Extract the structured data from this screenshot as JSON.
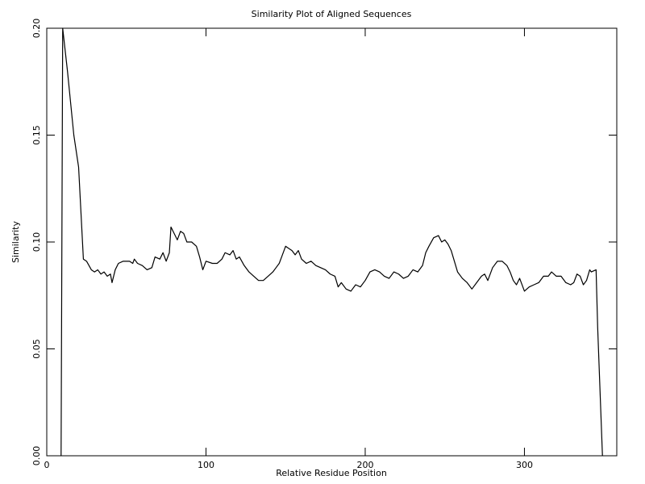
{
  "chart_data": {
    "type": "line",
    "title": "Similarity Plot of Aligned Sequences",
    "x_label": "Relative Residue Position",
    "y_label": "Similarity",
    "xlim": [
      0,
      358
    ],
    "ylim": [
      0,
      0.2
    ],
    "xticks": [
      0,
      100,
      200,
      300
    ],
    "yticks": [
      {
        "value": 0,
        "label": "0.00"
      },
      {
        "value": 0.05,
        "label": "0.05"
      },
      {
        "value": 0.1,
        "label": "0.10"
      },
      {
        "value": 0.15,
        "label": "0.15"
      },
      {
        "value": 0.2,
        "label": "0.20"
      }
    ],
    "color": "#000000",
    "x": [
      9,
      10,
      13,
      17,
      20,
      23,
      25,
      28,
      30,
      32,
      34,
      36,
      38,
      40,
      41,
      43,
      45,
      48,
      52,
      54,
      55,
      57,
      60,
      63,
      66,
      68,
      71,
      73,
      75,
      77,
      78,
      80,
      82,
      84,
      86,
      88,
      91,
      94,
      96,
      98,
      100,
      104,
      107,
      110,
      112,
      115,
      117,
      119,
      121,
      124,
      127,
      130,
      133,
      136,
      139,
      142,
      144,
      146,
      148,
      150,
      152,
      154,
      156,
      158,
      160,
      163,
      166,
      169,
      172,
      175,
      178,
      181,
      183,
      185,
      188,
      191,
      194,
      197,
      200,
      203,
      206,
      209,
      212,
      215,
      218,
      221,
      224,
      227,
      230,
      233,
      236,
      238,
      240,
      243,
      246,
      248,
      250,
      252,
      254,
      256,
      258,
      261,
      264,
      267,
      270,
      273,
      275,
      277,
      280,
      283,
      286,
      289,
      291,
      293,
      295,
      297,
      300,
      303,
      306,
      309,
      312,
      315,
      317,
      320,
      323,
      326,
      329,
      331,
      333,
      335,
      337,
      339,
      341,
      342,
      345,
      346,
      349
    ],
    "values": [
      0,
      0.2,
      0.18,
      0.15,
      0.135,
      0.092,
      0.091,
      0.087,
      0.086,
      0.087,
      0.085,
      0.086,
      0.084,
      0.085,
      0.081,
      0.087,
      0.09,
      0.091,
      0.091,
      0.09,
      0.092,
      0.09,
      0.089,
      0.087,
      0.088,
      0.093,
      0.092,
      0.095,
      0.091,
      0.095,
      0.107,
      0.104,
      0.101,
      0.105,
      0.104,
      0.1,
      0.1,
      0.098,
      0.093,
      0.087,
      0.091,
      0.09,
      0.09,
      0.092,
      0.095,
      0.094,
      0.096,
      0.092,
      0.093,
      0.089,
      0.086,
      0.084,
      0.082,
      0.082,
      0.084,
      0.086,
      0.088,
      0.09,
      0.094,
      0.098,
      0.097,
      0.096,
      0.094,
      0.096,
      0.092,
      0.09,
      0.091,
      0.089,
      0.088,
      0.087,
      0.085,
      0.084,
      0.079,
      0.081,
      0.078,
      0.077,
      0.08,
      0.079,
      0.082,
      0.086,
      0.087,
      0.086,
      0.084,
      0.083,
      0.086,
      0.085,
      0.083,
      0.084,
      0.087,
      0.086,
      0.089,
      0.095,
      0.098,
      0.102,
      0.103,
      0.1,
      0.101,
      0.099,
      0.096,
      0.091,
      0.086,
      0.083,
      0.081,
      0.078,
      0.081,
      0.084,
      0.085,
      0.082,
      0.088,
      0.091,
      0.091,
      0.089,
      0.086,
      0.082,
      0.08,
      0.083,
      0.077,
      0.079,
      0.08,
      0.081,
      0.084,
      0.084,
      0.086,
      0.084,
      0.084,
      0.081,
      0.08,
      0.081,
      0.085,
      0.084,
      0.08,
      0.082,
      0.087,
      0.086,
      0.087,
      0.06,
      0
    ]
  }
}
